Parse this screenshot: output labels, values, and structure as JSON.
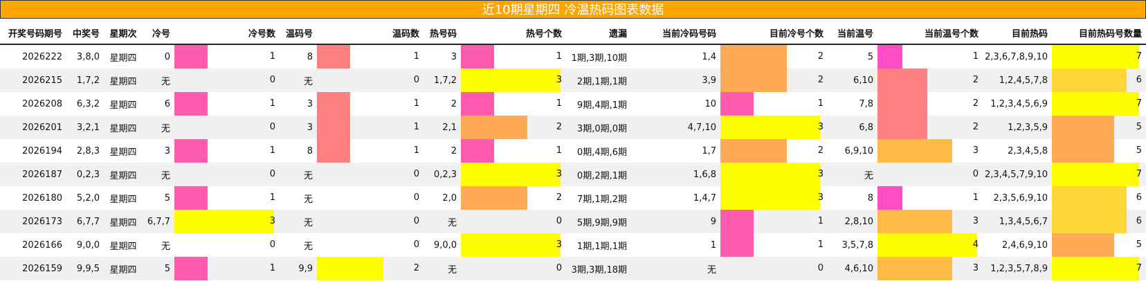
{
  "title": "近10期星期四 冷温热码图表数据",
  "colors": {
    "c1": "#ff5cb0",
    "c2": "#ffaa55",
    "c3": "#ffff00",
    "temp1": "#ff8080",
    "temp2": "#ffff00",
    "cur_cold2": "#ffaa55",
    "cur_warm1": "#ff4dc4",
    "cur_warm2": "#ff8080",
    "cur_warm3": "#ffbb44",
    "cur_warm4": "#ffff00",
    "cur_hot5": "#ffaa55",
    "cur_hot6": "#ffd633",
    "cur_hot7": "#ffff00"
  },
  "columns": [
    "开奖号码期号",
    "中奖号",
    "星期次",
    "冷号",
    "冷号数",
    "温码号",
    "温码数",
    "热号码",
    "热号个数",
    "遗漏",
    "当前冷码号码",
    "目前冷号个数",
    "当前温号",
    "当前温号个数",
    "目前热码",
    "目前热码号数量"
  ],
  "rows": [
    {
      "period": "2026222",
      "number": "3,8,0",
      "weekday": "星期四",
      "cold": "0",
      "cold_count": "1",
      "warm": "8",
      "warm_count": "1",
      "hot": "3",
      "hot_count": "1",
      "miss": "1期,3期,10期",
      "cur_cold": "1,4",
      "cur_cold_count": "2",
      "cur_warm": "5",
      "cur_warm_count": "1",
      "cur_hot": "2,3,6,7,8,9,10",
      "cur_hot_count": "7"
    },
    {
      "period": "2026215",
      "number": "1,7,2",
      "weekday": "星期四",
      "cold": "无",
      "cold_count": "0",
      "warm": "无",
      "warm_count": "0",
      "hot": "1,7,2",
      "hot_count": "3",
      "miss": "2期,1期,1期",
      "cur_cold": "3,9",
      "cur_cold_count": "2",
      "cur_warm": "6,10",
      "cur_warm_count": "2",
      "cur_hot": "1,2,4,5,7,8",
      "cur_hot_count": "6"
    },
    {
      "period": "2026208",
      "number": "6,3,2",
      "weekday": "星期四",
      "cold": "6",
      "cold_count": "1",
      "warm": "3",
      "warm_count": "1",
      "hot": "2",
      "hot_count": "1",
      "miss": "9期,4期,1期",
      "cur_cold": "10",
      "cur_cold_count": "1",
      "cur_warm": "7,8",
      "cur_warm_count": "2",
      "cur_hot": "1,2,3,4,5,6,9",
      "cur_hot_count": "7"
    },
    {
      "period": "2026201",
      "number": "3,2,1",
      "weekday": "星期四",
      "cold": "无",
      "cold_count": "0",
      "warm": "3",
      "warm_count": "1",
      "hot": "2,1",
      "hot_count": "2",
      "miss": "3期,0期,0期",
      "cur_cold": "4,7,10",
      "cur_cold_count": "3",
      "cur_warm": "6,8",
      "cur_warm_count": "2",
      "cur_hot": "1,2,3,5,9",
      "cur_hot_count": "5"
    },
    {
      "period": "2026194",
      "number": "2,8,3",
      "weekday": "星期四",
      "cold": "3",
      "cold_count": "1",
      "warm": "8",
      "warm_count": "1",
      "hot": "2",
      "hot_count": "1",
      "miss": "0期,4期,6期",
      "cur_cold": "1,7",
      "cur_cold_count": "2",
      "cur_warm": "6,9,10",
      "cur_warm_count": "3",
      "cur_hot": "2,3,4,5,8",
      "cur_hot_count": "5"
    },
    {
      "period": "2026187",
      "number": "0,2,3",
      "weekday": "星期四",
      "cold": "无",
      "cold_count": "0",
      "warm": "无",
      "warm_count": "0",
      "hot": "0,2,3",
      "hot_count": "3",
      "miss": "0期,2期,1期",
      "cur_cold": "1,6,8",
      "cur_cold_count": "3",
      "cur_warm": "无",
      "cur_warm_count": "0",
      "cur_hot": "2,3,4,5,7,9,10",
      "cur_hot_count": "7"
    },
    {
      "period": "2026180",
      "number": "5,2,0",
      "weekday": "星期四",
      "cold": "5",
      "cold_count": "1",
      "warm": "无",
      "warm_count": "0",
      "hot": "2,0",
      "hot_count": "2",
      "miss": "7期,1期,2期",
      "cur_cold": "1,4,7",
      "cur_cold_count": "3",
      "cur_warm": "8",
      "cur_warm_count": "1",
      "cur_hot": "2,3,5,6,9,10",
      "cur_hot_count": "6"
    },
    {
      "period": "2026173",
      "number": "6,7,7",
      "weekday": "星期四",
      "cold": "6,7,7",
      "cold_count": "3",
      "warm": "无",
      "warm_count": "0",
      "hot": "无",
      "hot_count": "0",
      "miss": "5期,9期,9期",
      "cur_cold": "9",
      "cur_cold_count": "1",
      "cur_warm": "2,8,10",
      "cur_warm_count": "3",
      "cur_hot": "1,3,4,5,6,7",
      "cur_hot_count": "6"
    },
    {
      "period": "2026166",
      "number": "9,0,0",
      "weekday": "星期四",
      "cold": "无",
      "cold_count": "0",
      "warm": "无",
      "warm_count": "0",
      "hot": "9,0,0",
      "hot_count": "3",
      "miss": "1期,1期,1期",
      "cur_cold": "1",
      "cur_cold_count": "1",
      "cur_warm": "3,5,7,8",
      "cur_warm_count": "4",
      "cur_hot": "2,4,6,9,10",
      "cur_hot_count": "5"
    },
    {
      "period": "2026159",
      "number": "9,9,5",
      "weekday": "星期四",
      "cold": "5",
      "cold_count": "1",
      "warm": "9,9",
      "warm_count": "2",
      "hot": "无",
      "hot_count": "0",
      "miss": "3期,3期,18期",
      "cur_cold": "无",
      "cur_cold_count": "0",
      "cur_warm": "4,6,10",
      "cur_warm_count": "3",
      "cur_hot": "1,2,3,5,7,8,9",
      "cur_hot_count": "7"
    }
  ]
}
